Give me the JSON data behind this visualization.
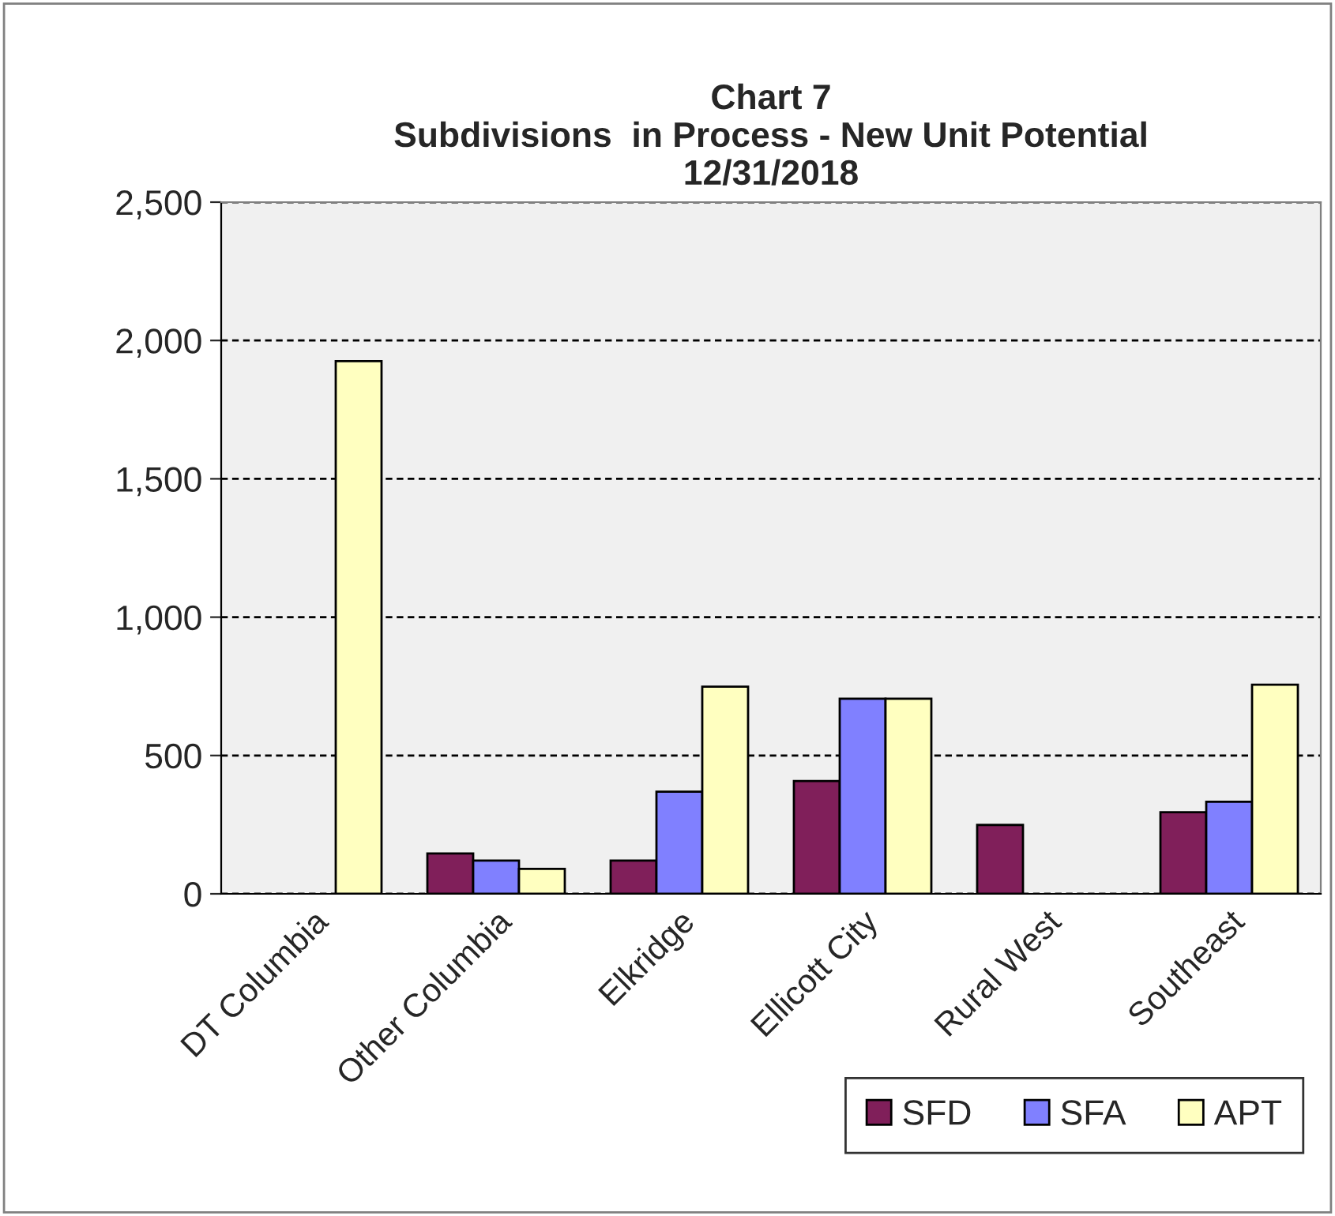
{
  "chart_data": {
    "type": "bar",
    "title": "Chart 7\nSubdivisions  in Process - New Unit Potential\n12/31/2018",
    "categories": [
      "DT Columbia",
      "Other Columbia",
      "Elkridge",
      "Ellicott City",
      "Rural West",
      "Southeast"
    ],
    "series": [
      {
        "name": "SFD",
        "color": "#801f5a",
        "values": [
          null,
          146,
          120,
          408,
          249,
          295
        ]
      },
      {
        "name": "SFA",
        "color": "#8080ff",
        "values": [
          null,
          120,
          369,
          705,
          null,
          333
        ]
      },
      {
        "name": "APT",
        "color": "#ffffc0",
        "values": [
          1925,
          90,
          749,
          705,
          null,
          756
        ]
      }
    ],
    "ylim": [
      0,
      2500
    ],
    "yticks": [
      0,
      {
        "value": 500,
        "label": "500"
      },
      {
        "value": 1000,
        "label": "1,000"
      },
      {
        "value": 1500,
        "label": "1,500"
      },
      {
        "value": 2000,
        "label": "2,000"
      },
      {
        "value": 2500,
        "label": "2,500"
      }
    ],
    "grid": "y",
    "legend": "bottom right"
  }
}
